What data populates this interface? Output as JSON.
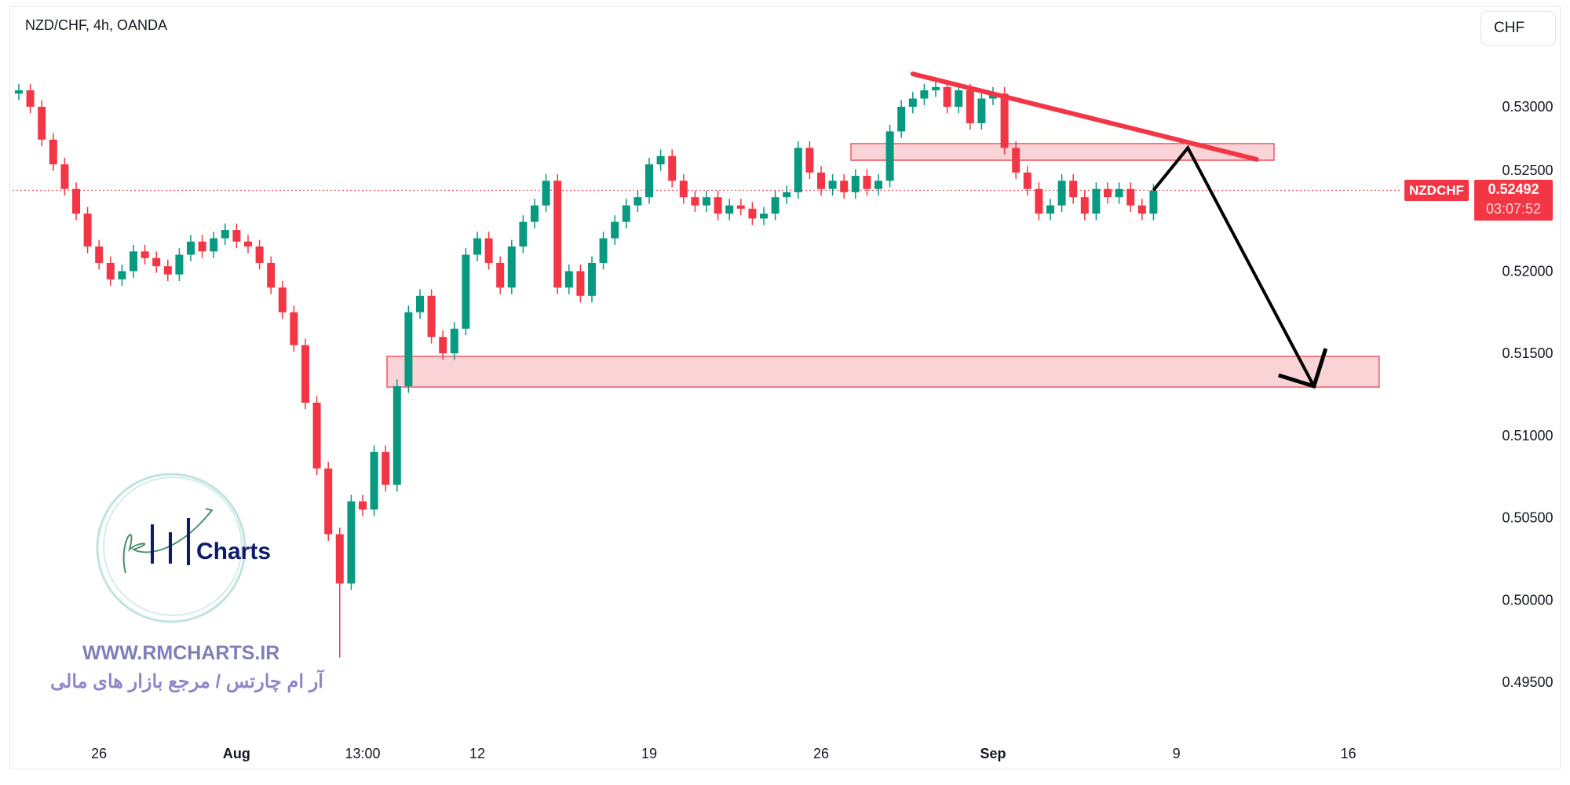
{
  "header": {
    "title": "NZD/CHF, 4h, OANDA",
    "currency_button": "CHF"
  },
  "price_badge": {
    "symbol": "NZDCHF",
    "price": "0.52492",
    "countdown": "03:07:52",
    "color": "#f23645"
  },
  "watermark": {
    "logo_text": "RM Charts",
    "url": "WWW.RMCHARTS.IR",
    "tagline": "آر ام چارتس / مرجع بازار های مالی"
  },
  "colors": {
    "up": "#089981",
    "down": "#f23645",
    "zone_fill": "#f9d3d6",
    "zone_border": "#f23645",
    "trendline": "#f23645",
    "arrow": "#000000"
  },
  "chart_data": {
    "type": "candlestick",
    "title": "NZD/CHF, 4h, OANDA",
    "ylim": [
      0.4925,
      0.5335
    ],
    "y_ticks": [
      "0.53000",
      "0.52500",
      "0.52000",
      "0.51500",
      "0.51000",
      "0.50500",
      "0.50000",
      "0.49500"
    ],
    "y_tick_values": [
      0.53,
      0.525,
      0.52,
      0.515,
      0.51,
      0.505,
      0.5,
      0.495
    ],
    "x_ticks": [
      "26",
      "Aug",
      "13:00",
      "12",
      "19",
      "26",
      "Sep",
      "9",
      "16"
    ],
    "x_tick_candle_index": [
      7,
      19,
      30,
      40,
      55,
      70,
      85,
      101,
      116
    ],
    "first_open": 0.5308,
    "closes": [
      0.531,
      0.53,
      0.528,
      0.5265,
      0.525,
      0.5235,
      0.5215,
      0.5205,
      0.5195,
      0.52,
      0.5212,
      0.5208,
      0.5203,
      0.5198,
      0.521,
      0.5218,
      0.5212,
      0.522,
      0.5225,
      0.5218,
      0.5215,
      0.5205,
      0.519,
      0.5175,
      0.5155,
      0.512,
      0.508,
      0.504,
      0.501,
      0.506,
      0.5055,
      0.509,
      0.507,
      0.513,
      0.5175,
      0.5185,
      0.516,
      0.515,
      0.5165,
      0.521,
      0.522,
      0.5205,
      0.519,
      0.5215,
      0.523,
      0.524,
      0.5255,
      0.519,
      0.52,
      0.5185,
      0.5205,
      0.522,
      0.523,
      0.524,
      0.5245,
      0.5265,
      0.527,
      0.5255,
      0.5245,
      0.524,
      0.5245,
      0.5235,
      0.524,
      0.5238,
      0.5232,
      0.5235,
      0.5245,
      0.5248,
      0.5275,
      0.526,
      0.525,
      0.5255,
      0.5248,
      0.5258,
      0.525,
      0.5255,
      0.5285,
      0.53,
      0.5305,
      0.531,
      0.5312,
      0.53,
      0.531,
      0.529,
      0.5305,
      0.5308,
      0.5275,
      0.526,
      0.525,
      0.5235,
      0.524,
      0.5255,
      0.5245,
      0.5235,
      0.525,
      0.5245,
      0.525,
      0.524,
      0.5235,
      0.5249
    ],
    "notable_wick": {
      "index": 28,
      "low": 0.4965
    },
    "last_price": 0.52492,
    "annotations": {
      "resistance_zone": [
        0.52675,
        0.52776
      ],
      "support_zone": [
        0.51295,
        0.51482
      ],
      "trendline": [
        [
          78,
          0.532
        ],
        [
          108,
          0.5268
        ]
      ],
      "projection_path": [
        [
          99,
          0.52492
        ],
        [
          102,
          0.5275
        ],
        [
          113,
          0.513
        ]
      ]
    }
  }
}
